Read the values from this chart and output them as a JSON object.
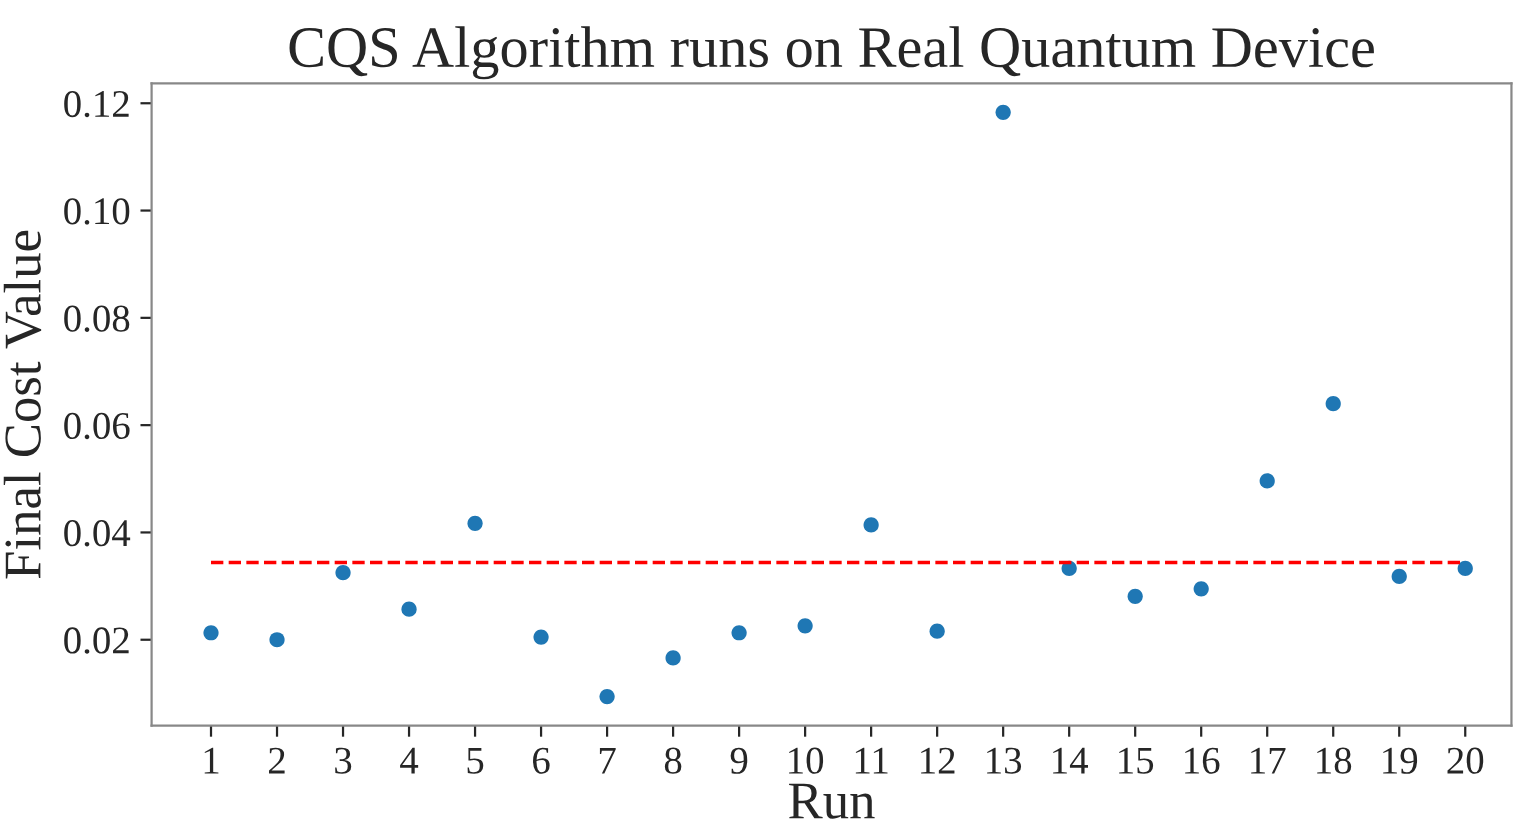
{
  "chart_data": {
    "type": "scatter",
    "title": "CQS Algorithm runs on Real Quantum Device",
    "xlabel": "Run",
    "ylabel": "Final Cost Value",
    "categories": [
      "1",
      "2",
      "3",
      "4",
      "5",
      "6",
      "7",
      "8",
      "9",
      "10",
      "11",
      "12",
      "13",
      "14",
      "15",
      "16",
      "17",
      "18",
      "19",
      "20"
    ],
    "series": [
      {
        "color": "#1f77b4",
        "values": [
          0.0213,
          0.02,
          0.0325,
          0.0257,
          0.0417,
          0.0205,
          0.0094,
          0.0166,
          0.0213,
          0.0226,
          0.0414,
          0.0216,
          0.1183,
          0.0333,
          0.0281,
          0.0295,
          0.0496,
          0.064,
          0.0318,
          0.0333
        ]
      }
    ],
    "ylim": [
      0.004,
      0.1237
    ],
    "yticks": [
      {
        "value": 0.02,
        "label": "0.02"
      },
      {
        "value": 0.04,
        "label": "0.04"
      },
      {
        "value": 0.06,
        "label": "0.06"
      },
      {
        "value": 0.08,
        "label": "0.08"
      },
      {
        "value": 0.1,
        "label": "0.10"
      },
      {
        "value": 0.12,
        "label": "0.12"
      }
    ],
    "ref_lines": [
      {
        "axis": "y",
        "value": 0.0344,
        "color": "#ff0000",
        "line_style": "dashed"
      }
    ],
    "marker": "circle",
    "grid": false,
    "legend": false
  }
}
